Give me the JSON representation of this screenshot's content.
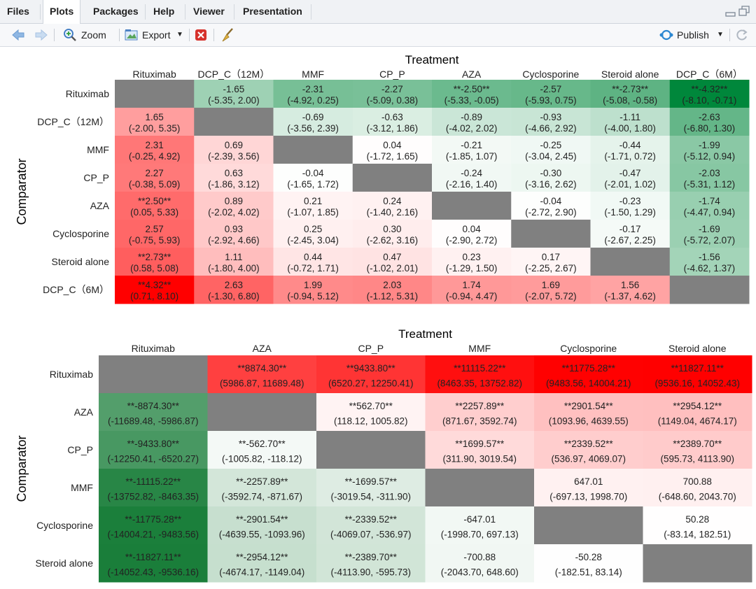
{
  "tabs": {
    "files": "Files",
    "plots": "Plots",
    "packages": "Packages",
    "help": "Help",
    "viewer": "Viewer",
    "presentation": "Presentation"
  },
  "toolbar": {
    "zoom": "Zoom",
    "export": "Export",
    "publish": "Publish"
  },
  "chart_data": [
    {
      "type": "heatmap",
      "title": "Treatment",
      "ylabel": "Comparator",
      "columns": [
        "Rituximab",
        "DCP_C（12M）",
        "MMF",
        "CP_P",
        "AZA",
        "Cyclosporine",
        "Steroid alone",
        "DCP_C（6M）"
      ],
      "rows": [
        "Rituximab",
        "DCP_C（12M）",
        "MMF",
        "CP_P",
        "AZA",
        "Cyclosporine",
        "Steroid alone",
        "DCP_C（6M）"
      ],
      "values": [
        [
          null,
          -1.65,
          -2.31,
          -2.27,
          -2.5,
          -2.57,
          -2.73,
          -4.32
        ],
        [
          1.65,
          null,
          -0.69,
          -0.63,
          -0.89,
          -0.93,
          -1.11,
          -2.63
        ],
        [
          2.31,
          0.69,
          null,
          0.04,
          -0.21,
          -0.25,
          -0.44,
          -1.99
        ],
        [
          2.27,
          0.63,
          -0.04,
          null,
          -0.24,
          -0.3,
          -0.47,
          -2.03
        ],
        [
          2.5,
          0.89,
          0.21,
          0.24,
          null,
          -0.04,
          -0.23,
          -1.74
        ],
        [
          2.57,
          0.93,
          0.25,
          0.3,
          0.04,
          null,
          -0.17,
          -1.69
        ],
        [
          2.73,
          1.11,
          0.44,
          0.47,
          0.23,
          0.17,
          null,
          -1.56
        ],
        [
          4.32,
          2.63,
          1.99,
          2.03,
          1.74,
          1.69,
          1.56,
          null
        ]
      ],
      "labels": [
        [
          null,
          "-1.65",
          "-2.31",
          "-2.27",
          "**-2.50**",
          "-2.57",
          "**-2.73**",
          "**-4.32**"
        ],
        [
          "1.65",
          null,
          "-0.69",
          "-0.63",
          "-0.89",
          "-0.93",
          "-1.11",
          "-2.63"
        ],
        [
          "2.31",
          "0.69",
          null,
          "0.04",
          "-0.21",
          "-0.25",
          "-0.44",
          "-1.99"
        ],
        [
          "2.27",
          "0.63",
          "-0.04",
          null,
          "-0.24",
          "-0.30",
          "-0.47",
          "-2.03"
        ],
        [
          "**2.50**",
          "0.89",
          "0.21",
          "0.24",
          null,
          "-0.04",
          "-0.23",
          "-1.74"
        ],
        [
          "2.57",
          "0.93",
          "0.25",
          "0.30",
          "0.04",
          null,
          "-0.17",
          "-1.69"
        ],
        [
          "**2.73**",
          "1.11",
          "0.44",
          "0.47",
          "0.23",
          "0.17",
          null,
          "-1.56"
        ],
        [
          "**4.32**",
          "2.63",
          "1.99",
          "2.03",
          "1.74",
          "1.69",
          "1.56",
          null
        ]
      ],
      "ci": [
        [
          null,
          "(-5.35, 2.00)",
          "(-4.92, 0.25)",
          "(-5.09, 0.38)",
          "(-5.33, -0.05)",
          "(-5.93, 0.75)",
          "(-5.08, -0.58)",
          "(-8.10, -0.71)"
        ],
        [
          "(-2.00, 5.35)",
          null,
          "(-3.56, 2.39)",
          "(-3.12, 1.86)",
          "(-4.02, 2.02)",
          "(-4.66, 2.92)",
          "(-4.00, 1.80)",
          "(-6.80, 1.30)"
        ],
        [
          "(-0.25, 4.92)",
          "(-2.39, 3.56)",
          null,
          "(-1.72, 1.65)",
          "(-1.85, 1.07)",
          "(-3.04, 2.45)",
          "(-1.71, 0.72)",
          "(-5.12, 0.94)"
        ],
        [
          "(-0.38, 5.09)",
          "(-1.86, 3.12)",
          "(-1.65, 1.72)",
          null,
          "(-2.16, 1.40)",
          "(-3.16, 2.62)",
          "(-2.01, 1.02)",
          "(-5.31, 1.12)"
        ],
        [
          "(0.05, 5.33)",
          "(-2.02, 4.02)",
          "(-1.07, 1.85)",
          "(-1.40, 2.16)",
          null,
          "(-2.72, 2.90)",
          "(-1.50, 1.29)",
          "(-4.47, 0.94)"
        ],
        [
          "(-0.75, 5.93)",
          "(-2.92, 4.66)",
          "(-2.45, 3.04)",
          "(-2.62, 3.16)",
          "(-2.90, 2.72)",
          null,
          "(-2.67, 2.25)",
          "(-5.72, 2.07)"
        ],
        [
          "(0.58, 5.08)",
          "(-1.80, 4.00)",
          "(-0.72, 1.71)",
          "(-1.02, 2.01)",
          "(-1.29, 1.50)",
          "(-2.25, 2.67)",
          null,
          "(-4.62, 1.37)"
        ],
        [
          "(0.71, 8.10)",
          "(-1.30, 6.80)",
          "(-0.94, 5.12)",
          "(-1.12, 5.31)",
          "(-0.94, 4.47)",
          "(-2.07, 5.72)",
          "(-1.37, 4.62)",
          null
        ]
      ],
      "vmax": 4.32,
      "colors": {
        "positive": "#ff0000",
        "negative": "#00873b",
        "diagonal": "#808080"
      }
    },
    {
      "type": "heatmap",
      "title": "Treatment",
      "ylabel": "Comparator",
      "columns": [
        "Rituximab",
        "AZA",
        "CP_P",
        "MMF",
        "Cyclosporine",
        "Steroid alone"
      ],
      "rows": [
        "Rituximab",
        "AZA",
        "CP_P",
        "MMF",
        "Cyclosporine",
        "Steroid alone"
      ],
      "values": [
        [
          null,
          8874.3,
          9433.8,
          11115.22,
          11775.28,
          11827.11
        ],
        [
          -8874.3,
          null,
          562.7,
          2257.89,
          2901.54,
          2954.12
        ],
        [
          -9433.8,
          -562.7,
          null,
          1699.57,
          2339.52,
          2389.7
        ],
        [
          -11115.22,
          -2257.89,
          -1699.57,
          null,
          647.01,
          700.88
        ],
        [
          -11775.28,
          -2901.54,
          -2339.52,
          -647.01,
          null,
          50.28
        ],
        [
          -11827.11,
          -2954.12,
          -2389.7,
          -700.88,
          -50.28,
          null
        ]
      ],
      "labels": [
        [
          null,
          "**8874.30**",
          "**9433.80**",
          "**11115.22**",
          "**11775.28**",
          "**11827.11**"
        ],
        [
          "**-8874.30**",
          null,
          "**562.70**",
          "**2257.89**",
          "**2901.54**",
          "**2954.12**"
        ],
        [
          "**-9433.80**",
          "**-562.70**",
          null,
          "**1699.57**",
          "**2339.52**",
          "**2389.70**"
        ],
        [
          "**-11115.22**",
          "**-2257.89**",
          "**-1699.57**",
          null,
          "647.01",
          "700.88"
        ],
        [
          "**-11775.28**",
          "**-2901.54**",
          "**-2339.52**",
          "-647.01",
          null,
          "50.28"
        ],
        [
          "**-11827.11**",
          "**-2954.12**",
          "**-2389.70**",
          "-700.88",
          "-50.28",
          null
        ]
      ],
      "ci": [
        [
          null,
          "(5986.87, 11689.48)",
          "(6520.27, 12250.41)",
          "(8463.35, 13752.82)",
          "(9483.56, 14004.21)",
          "(9536.16, 14052.43)"
        ],
        [
          "(-11689.48, -5986.87)",
          null,
          "(118.12, 1005.82)",
          "(871.67, 3592.74)",
          "(1093.96, 4639.55)",
          "(1149.04, 4674.17)"
        ],
        [
          "(-12250.41, -6520.27)",
          "(-1005.82, -118.12)",
          null,
          "(311.90, 3019.54)",
          "(536.97, 4069.07)",
          "(595.73, 4113.90)"
        ],
        [
          "(-13752.82, -8463.35)",
          "(-3592.74, -871.67)",
          "(-3019.54, -311.90)",
          null,
          "(-697.13, 1998.70)",
          "(-648.60, 2043.70)"
        ],
        [
          "(-14004.21, -9483.56)",
          "(-4639.55, -1093.96)",
          "(-4069.07, -536.97)",
          "(-1998.70, 697.13)",
          null,
          "(-83.14, 182.51)"
        ],
        [
          "(-14052.43, -9536.16)",
          "(-4674.17, -1149.04)",
          "(-4113.90, -595.73)",
          "(-2043.70, 648.60)",
          "(-182.51, 83.14)",
          null
        ]
      ],
      "vmax": 11827.11,
      "colors": {
        "positive": "#ff0000",
        "negative": "#1a7e3a",
        "diagonal": "#808080"
      }
    }
  ]
}
